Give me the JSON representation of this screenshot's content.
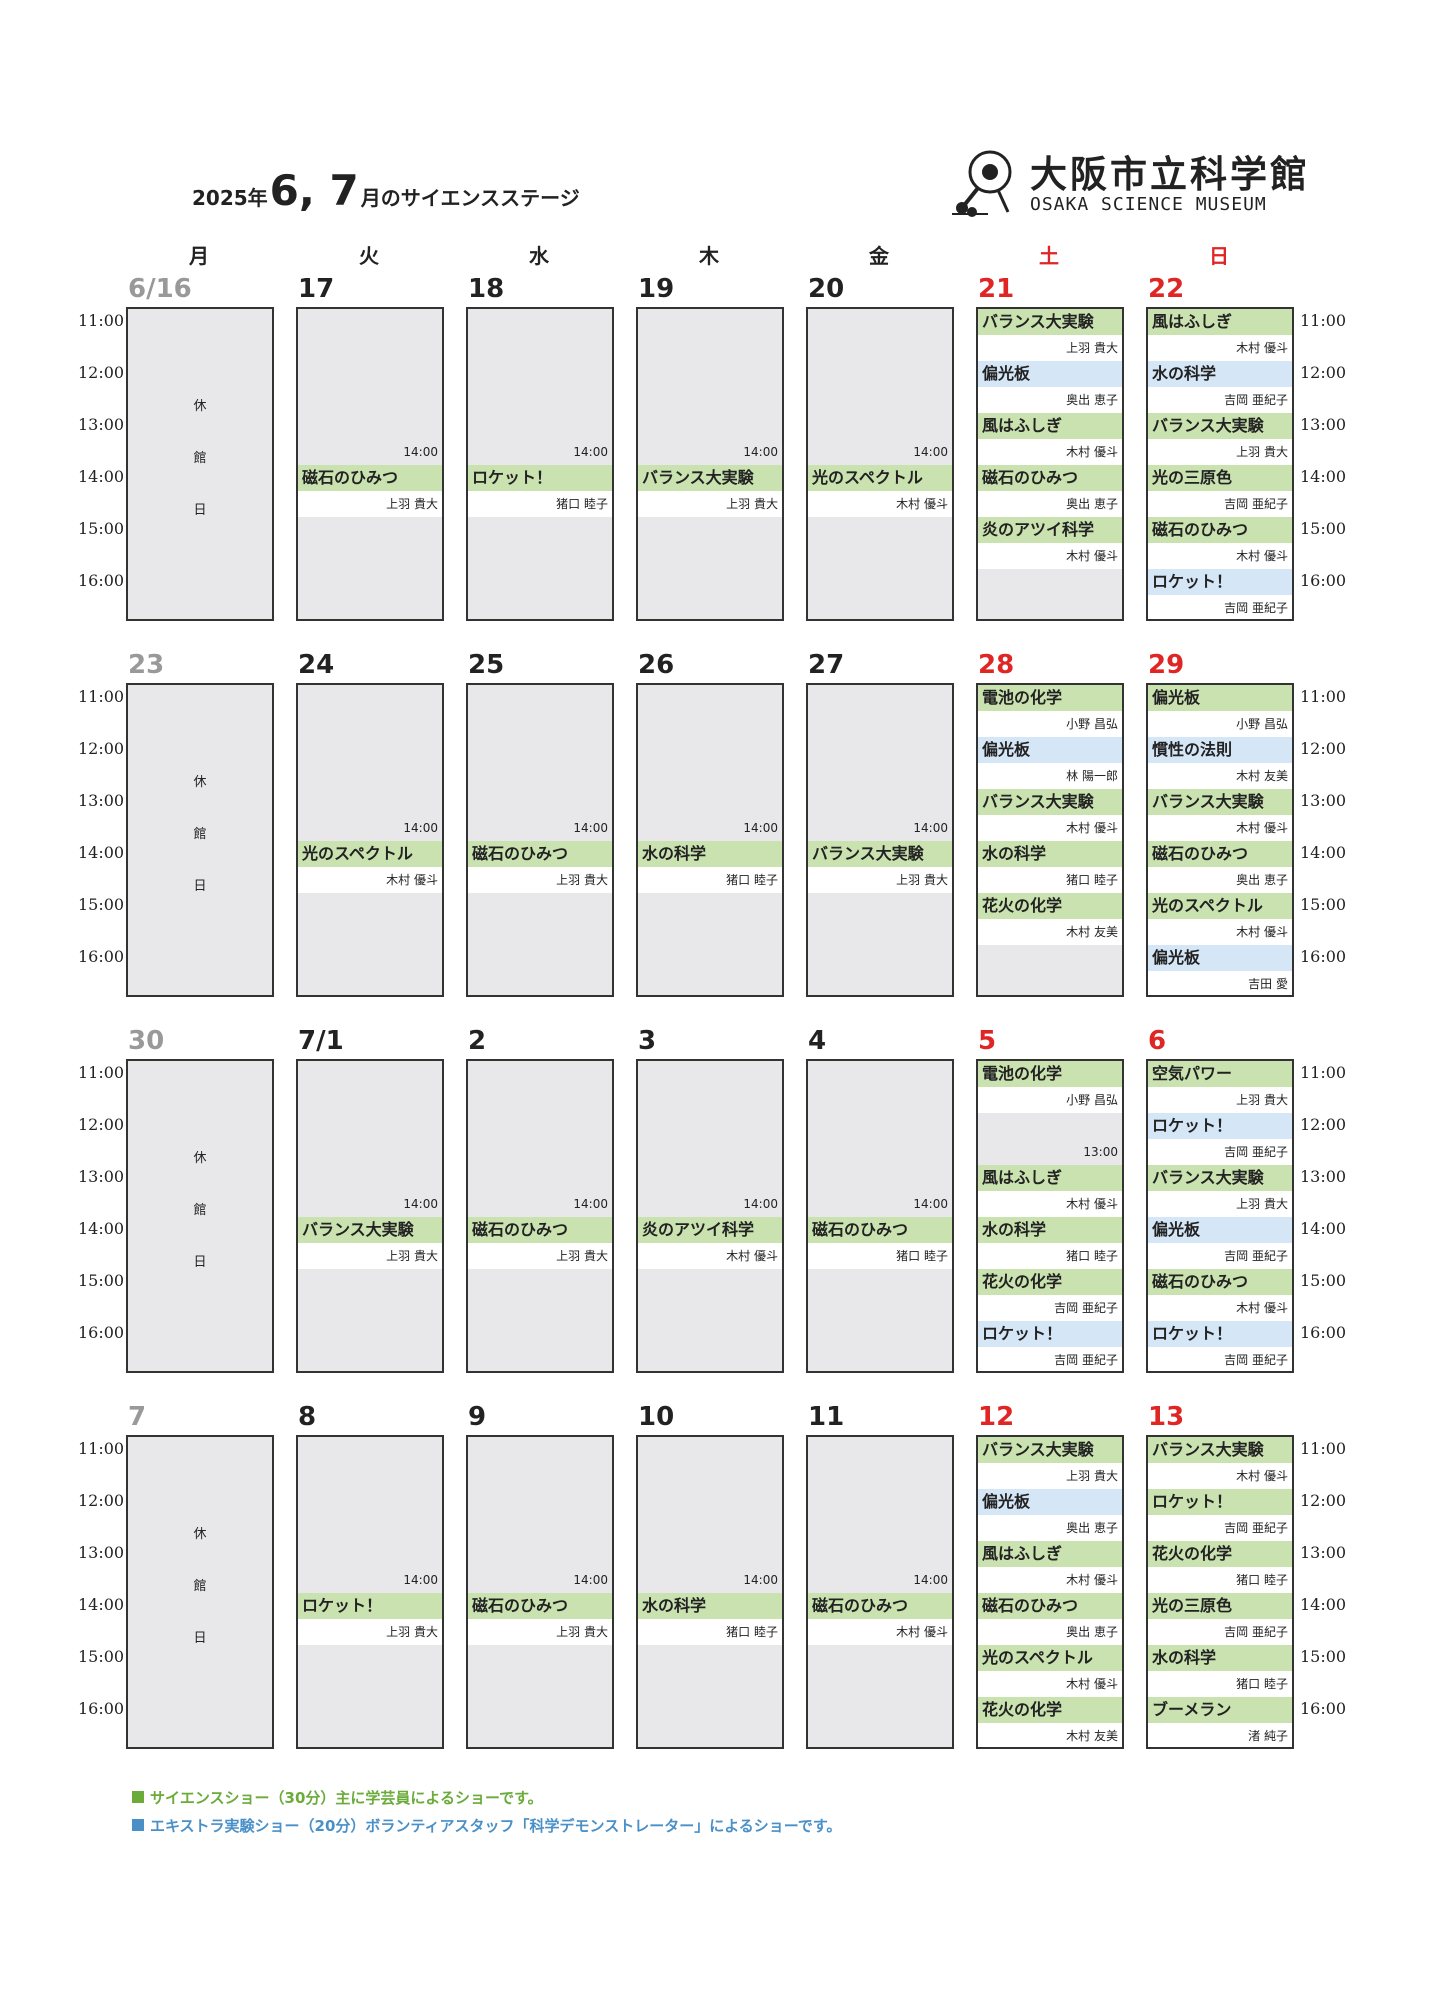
{
  "header": {
    "year_text": "2025年",
    "months_text": "6, 7",
    "title_rest": "月のサイエンスステージ",
    "logo_jp": "大阪市立科学館",
    "logo_en": "OSAKA SCIENCE MUSEUM"
  },
  "weekdays": [
    "月",
    "火",
    "水",
    "木",
    "金",
    "土",
    "日"
  ],
  "time_labels": [
    "11:00",
    "12:00",
    "13:00",
    "14:00",
    "15:00",
    "16:00"
  ],
  "closed_text": [
    "休",
    "館",
    "日"
  ],
  "colors": {
    "science_show": "#c9e2b0",
    "extra_show": "#d5e6f6",
    "weekend_red": "#e02525"
  },
  "weeks": [
    {
      "dates": [
        "6/16",
        "17",
        "18",
        "19",
        "20",
        "21",
        "22"
      ],
      "weekday_events": [
        {
          "time": "14:00",
          "title": "磁石のひみつ",
          "person": "上羽 貴大"
        },
        {
          "time": "14:00",
          "title": "ロケット！",
          "person": "猪口 睦子"
        },
        {
          "time": "14:00",
          "title": "バランス大実験",
          "person": "上羽 貴大"
        },
        {
          "time": "14:00",
          "title": "光のスペクトル",
          "person": "木村 優斗"
        }
      ],
      "sat": [
        {
          "title": "バランス大実験",
          "person": "上羽 貴大",
          "type": "g"
        },
        {
          "title": "偏光板",
          "person": "奥出 恵子",
          "type": "b"
        },
        {
          "title": "風はふしぎ",
          "person": "木村 優斗",
          "type": "g"
        },
        {
          "title": "磁石のひみつ",
          "person": "奥出 恵子",
          "type": "g"
        },
        {
          "title": "炎のアツイ科学",
          "person": "木村 優斗",
          "type": "g"
        }
      ],
      "sun": [
        {
          "title": "風はふしぎ",
          "person": "木村 優斗",
          "type": "g"
        },
        {
          "title": "水の科学",
          "person": "吉岡 亜紀子",
          "type": "b"
        },
        {
          "title": "バランス大実験",
          "person": "上羽 貴大",
          "type": "g"
        },
        {
          "title": "光の三原色",
          "person": "吉岡 亜紀子",
          "type": "g"
        },
        {
          "title": "磁石のひみつ",
          "person": "木村 優斗",
          "type": "g"
        },
        {
          "title": "ロケット！",
          "person": "吉岡 亜紀子",
          "type": "b"
        }
      ]
    },
    {
      "dates": [
        "23",
        "24",
        "25",
        "26",
        "27",
        "28",
        "29"
      ],
      "weekday_events": [
        {
          "time": "14:00",
          "title": "光のスペクトル",
          "person": "木村 優斗"
        },
        {
          "time": "14:00",
          "title": "磁石のひみつ",
          "person": "上羽 貴大"
        },
        {
          "time": "14:00",
          "title": "水の科学",
          "person": "猪口 睦子"
        },
        {
          "time": "14:00",
          "title": "バランス大実験",
          "person": "上羽 貴大"
        }
      ],
      "sat": [
        {
          "title": "電池の化学",
          "person": "小野 昌弘",
          "type": "g"
        },
        {
          "title": "偏光板",
          "person": "林 陽一郎",
          "type": "b"
        },
        {
          "title": "バランス大実験",
          "person": "木村 優斗",
          "type": "g"
        },
        {
          "title": "水の科学",
          "person": "猪口 睦子",
          "type": "g"
        },
        {
          "title": "花火の化学",
          "person": "木村 友美",
          "type": "g"
        }
      ],
      "sun": [
        {
          "title": "偏光板",
          "person": "小野 昌弘",
          "type": "g"
        },
        {
          "title": "慣性の法則",
          "person": "木村 友美",
          "type": "b"
        },
        {
          "title": "バランス大実験",
          "person": "木村 優斗",
          "type": "g"
        },
        {
          "title": "磁石のひみつ",
          "person": "奥出 恵子",
          "type": "g"
        },
        {
          "title": "光のスペクトル",
          "person": "木村 優斗",
          "type": "g"
        },
        {
          "title": "偏光板",
          "person": "吉田 愛",
          "type": "b"
        }
      ]
    },
    {
      "dates": [
        "30",
        "7/1",
        "2",
        "3",
        "4",
        "5",
        "6"
      ],
      "weekday_events": [
        {
          "time": "14:00",
          "title": "バランス大実験",
          "person": "上羽 貴大"
        },
        {
          "time": "14:00",
          "title": "磁石のひみつ",
          "person": "上羽 貴大"
        },
        {
          "time": "14:00",
          "title": "炎のアツイ科学",
          "person": "木村 優斗"
        },
        {
          "time": "14:00",
          "title": "磁石のひみつ",
          "person": "猪口 睦子"
        }
      ],
      "sat_gap_time": "13:00",
      "sat": [
        {
          "title": "電池の化学",
          "person": "小野 昌弘",
          "type": "g"
        },
        null,
        {
          "title": "風はふしぎ",
          "person": "木村 優斗",
          "type": "g"
        },
        {
          "title": "水の科学",
          "person": "猪口 睦子",
          "type": "g"
        },
        {
          "title": "花火の化学",
          "person": "吉岡 亜紀子",
          "type": "g"
        },
        {
          "title": "ロケット！",
          "person": "吉岡 亜紀子",
          "type": "b"
        }
      ],
      "sun": [
        {
          "title": "空気パワー",
          "person": "上羽 貴大",
          "type": "g"
        },
        {
          "title": "ロケット！",
          "person": "吉岡 亜紀子",
          "type": "b"
        },
        {
          "title": "バランス大実験",
          "person": "上羽 貴大",
          "type": "g"
        },
        {
          "title": "偏光板",
          "person": "吉岡 亜紀子",
          "type": "b"
        },
        {
          "title": "磁石のひみつ",
          "person": "木村 優斗",
          "type": "g"
        },
        {
          "title": "ロケット！",
          "person": "吉岡 亜紀子",
          "type": "b"
        }
      ]
    },
    {
      "dates": [
        "7",
        "8",
        "9",
        "10",
        "11",
        "12",
        "13"
      ],
      "weekday_events": [
        {
          "time": "14:00",
          "title": "ロケット！",
          "person": "上羽 貴大"
        },
        {
          "time": "14:00",
          "title": "磁石のひみつ",
          "person": "上羽 貴大"
        },
        {
          "time": "14:00",
          "title": "水の科学",
          "person": "猪口 睦子"
        },
        {
          "time": "14:00",
          "title": "磁石のひみつ",
          "person": "木村 優斗"
        }
      ],
      "sat": [
        {
          "title": "バランス大実験",
          "person": "上羽 貴大",
          "type": "g"
        },
        {
          "title": "偏光板",
          "person": "奥出 恵子",
          "type": "b"
        },
        {
          "title": "風はふしぎ",
          "person": "木村 優斗",
          "type": "g"
        },
        {
          "title": "磁石のひみつ",
          "person": "奥出 恵子",
          "type": "g"
        },
        {
          "title": "光のスペクトル",
          "person": "木村 優斗",
          "type": "g"
        },
        {
          "title": "花火の化学",
          "person": "木村 友美",
          "type": "g"
        }
      ],
      "sun": [
        {
          "title": "バランス大実験",
          "person": "木村 優斗",
          "type": "g"
        },
        {
          "title": "ロケット！",
          "person": "吉岡 亜紀子",
          "type": "g"
        },
        {
          "title": "花火の化学",
          "person": "猪口 睦子",
          "type": "g"
        },
        {
          "title": "光の三原色",
          "person": "吉岡 亜紀子",
          "type": "g"
        },
        {
          "title": "水の科学",
          "person": "猪口 睦子",
          "type": "g"
        },
        {
          "title": "ブーメラン",
          "person": "渚 純子",
          "type": "g"
        }
      ]
    }
  ],
  "legend": {
    "science": "サイエンスショー（30分）主に学芸員によるショーです。",
    "extra": "エキストラ実験ショー（20分）ボランティアスタッフ「科学デモンストレーター」によるショーです。"
  }
}
